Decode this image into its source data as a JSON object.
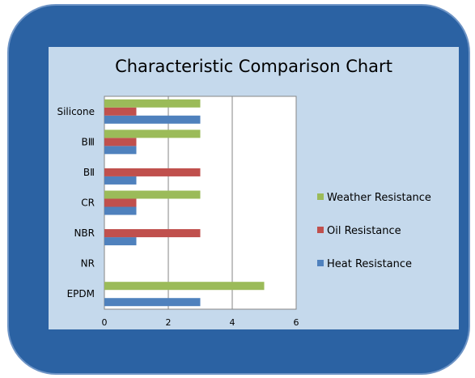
{
  "chart_data": {
    "type": "bar",
    "orientation": "horizontal",
    "title": "Characteristic Comparison Chart",
    "categories": [
      "EPDM",
      "NR",
      "NBR",
      "CR",
      "BⅡ",
      "BⅢ",
      "Silicone"
    ],
    "series": [
      {
        "name": "Heat Resistance",
        "color": "#4f81bd",
        "values": [
          3,
          0,
          1,
          1,
          1,
          1,
          3
        ]
      },
      {
        "name": "Oil Resistance",
        "color": "#c0504d",
        "values": [
          0,
          0,
          3,
          1,
          3,
          1,
          1
        ]
      },
      {
        "name": "Weather Resistance",
        "color": "#9bbb59",
        "values": [
          5,
          0,
          0,
          3,
          0,
          3,
          3
        ]
      }
    ],
    "xlim": [
      0,
      6
    ],
    "xticks": [
      0,
      2,
      4,
      6
    ],
    "gridlines": true,
    "legend_position": "right"
  }
}
